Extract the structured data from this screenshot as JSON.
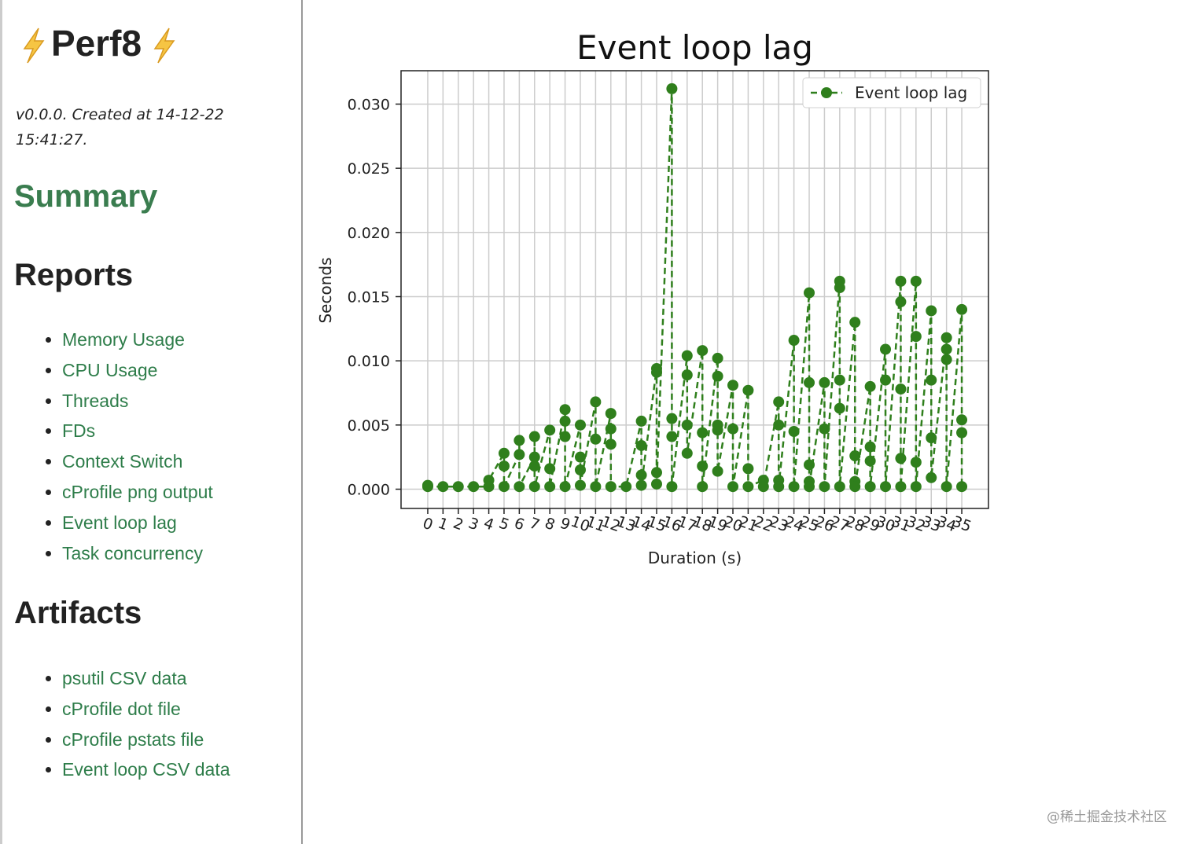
{
  "sidebar": {
    "title": "Perf8",
    "meta": "v0.0.0. Created at 14-12-22 15:41:27.",
    "summary": "Summary",
    "reports_heading": "Reports",
    "reports": [
      "Memory Usage",
      "CPU Usage",
      "Threads",
      "FDs",
      "Context Switch",
      "cProfile png output",
      "Event loop lag",
      "Task concurrency"
    ],
    "artifacts_heading": "Artifacts",
    "artifacts": [
      "psutil CSV data",
      "cProfile dot file",
      "cProfile pstats file",
      "Event loop CSV data"
    ]
  },
  "watermark": "@稀土掘金技术社区",
  "chart_data": {
    "type": "line",
    "title": "Event loop lag",
    "x_label": "Duration (s)",
    "y_label": "Seconds",
    "x": [
      0,
      0,
      1,
      2,
      3,
      4,
      4,
      5,
      5,
      5,
      6,
      6,
      6,
      7,
      7,
      7,
      7,
      8,
      8,
      8,
      9,
      9,
      9,
      9,
      10,
      10,
      10,
      10,
      11,
      11,
      11,
      12,
      12,
      12,
      12,
      13,
      14,
      14,
      14,
      14,
      15,
      15,
      15,
      15,
      16,
      16,
      16,
      16,
      17,
      17,
      17,
      17,
      18,
      18,
      18,
      18,
      19,
      19,
      19,
      19,
      19,
      20,
      20,
      20,
      21,
      21,
      21,
      22,
      22,
      23,
      23,
      23,
      23,
      24,
      24,
      24,
      25,
      25,
      25,
      25,
      25,
      26,
      26,
      26,
      27,
      27,
      27,
      27,
      27,
      28,
      28,
      28,
      28,
      29,
      29,
      29,
      29,
      30,
      30,
      30,
      31,
      31,
      31,
      31,
      31,
      32,
      32,
      32,
      32,
      33,
      33,
      33,
      33,
      34,
      34,
      34,
      34,
      35,
      35,
      35,
      35
    ],
    "series": [
      {
        "name": "Event loop lag",
        "color": "#2f7f1c",
        "values": [
          0.0003,
          0.0002,
          0.0002,
          0.0002,
          0.0002,
          0.0002,
          0.0007,
          0.0028,
          0.0018,
          0.0002,
          0.0027,
          0.0038,
          0.0002,
          0.0025,
          0.0041,
          0.0018,
          0.0002,
          0.0046,
          0.0016,
          0.0002,
          0.0062,
          0.0053,
          0.0041,
          0.0002,
          0.005,
          0.0025,
          0.0015,
          0.0003,
          0.0068,
          0.0039,
          0.0002,
          0.0059,
          0.0047,
          0.0035,
          0.0002,
          0.0002,
          0.0053,
          0.0034,
          0.0011,
          0.0003,
          0.0094,
          0.0091,
          0.0013,
          0.0004,
          0.0312,
          0.0055,
          0.0041,
          0.0002,
          0.0104,
          0.0089,
          0.005,
          0.0028,
          0.0108,
          0.0044,
          0.0018,
          0.0002,
          0.0102,
          0.0088,
          0.005,
          0.0046,
          0.0014,
          0.0081,
          0.0047,
          0.0002,
          0.0077,
          0.0016,
          0.0002,
          0.0007,
          0.0002,
          0.0068,
          0.005,
          0.0007,
          0.0002,
          0.0116,
          0.0045,
          0.0002,
          0.0153,
          0.0083,
          0.0019,
          0.0006,
          0.0002,
          0.0083,
          0.0047,
          0.0002,
          0.0162,
          0.0157,
          0.0085,
          0.0063,
          0.0002,
          0.013,
          0.0026,
          0.0006,
          0.0002,
          0.008,
          0.0033,
          0.0022,
          0.0002,
          0.0109,
          0.0085,
          0.0002,
          0.0162,
          0.0146,
          0.0078,
          0.0024,
          0.0002,
          0.0162,
          0.0119,
          0.0021,
          0.0002,
          0.0139,
          0.0085,
          0.004,
          0.0009,
          0.0118,
          0.0109,
          0.0101,
          0.0002,
          0.014,
          0.0054,
          0.0044,
          0.0002
        ]
      }
    ],
    "xlim": [
      -1.75,
      36.75
    ],
    "ylim": [
      -0.0015,
      0.0326
    ],
    "xticks": [
      0,
      1,
      2,
      3,
      4,
      5,
      6,
      7,
      8,
      9,
      10,
      11,
      12,
      13,
      14,
      15,
      16,
      17,
      18,
      19,
      20,
      21,
      22,
      23,
      24,
      25,
      26,
      27,
      28,
      29,
      30,
      31,
      32,
      33,
      34,
      35
    ],
    "yticks": [
      {
        "value": 0,
        "label": "0.000"
      },
      {
        "value": 0.005,
        "label": "0.005"
      },
      {
        "value": 0.01,
        "label": "0.010"
      },
      {
        "value": 0.015,
        "label": "0.015"
      },
      {
        "value": 0.02,
        "label": "0.020"
      },
      {
        "value": 0.025,
        "label": "0.025"
      },
      {
        "value": 0.03,
        "label": "0.030"
      }
    ],
    "grid": true,
    "legend": "upper right"
  }
}
